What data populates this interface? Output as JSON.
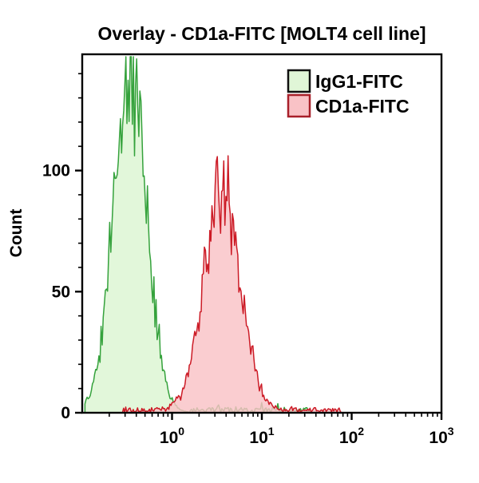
{
  "chart_data": {
    "type": "area",
    "subtype": "flow-cytometry-histogram-overlay",
    "title": "Overlay - CD1a-FITC [MOLT4 cell line]",
    "xlabel": "",
    "ylabel": "Count",
    "x_scale": "log",
    "x_range": [
      0.1,
      1000
    ],
    "x_ticks": [
      {
        "base": "10",
        "exp": "0"
      },
      {
        "base": "10",
        "exp": "1"
      },
      {
        "base": "10",
        "exp": "2"
      },
      {
        "base": "10",
        "exp": "3"
      }
    ],
    "y_range": [
      0,
      148
    ],
    "y_ticks": [
      {
        "value": 0,
        "label": "0"
      },
      {
        "value": 50,
        "label": "50"
      },
      {
        "value": 100,
        "label": "100"
      }
    ],
    "y_minor_step": 10,
    "grid": false,
    "legend_position": "top-right-inside",
    "series": [
      {
        "name": "IgG1-FITC",
        "stroke": "#35a23c",
        "fill": "#e0f6d7",
        "peak": {
          "x": 0.34,
          "count": 140
        },
        "log10_mean": -0.47,
        "log10_sigma": 0.185,
        "span_log10": [
          -0.97,
          1.6
        ],
        "baseline_noise_log10": [
          0.2,
          1.55
        ]
      },
      {
        "name": "CD1a-FITC",
        "stroke": "#cc1b26",
        "fill": "#f9c2c6",
        "peak": {
          "x": 3.6,
          "count": 92
        },
        "log10_mean": 0.555,
        "log10_sigma": 0.2,
        "span_log10": [
          -0.6,
          1.95
        ],
        "baseline_noise_log10": [
          -0.55,
          1.88
        ]
      }
    ]
  }
}
